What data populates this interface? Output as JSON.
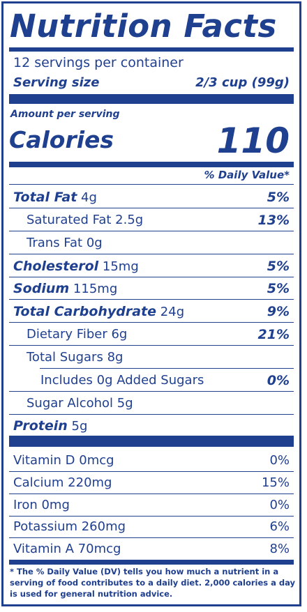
{
  "label": {
    "title": "Nutrition Facts",
    "servings": "12 servings per container",
    "serving_size_label": "Serving size",
    "serving_size_value": "2/3 cup (99g)",
    "amount_per_serving": "Amount per serving",
    "calories_label": "Calories",
    "calories_value": "110",
    "daily_value_header": "% Daily Value*",
    "nutrients": [
      {
        "name": "Total Fat",
        "amount": "4g",
        "dv": "5%"
      },
      {
        "name": "Saturated Fat",
        "amount": "2.5g",
        "dv": "13%"
      },
      {
        "name": "Trans Fat",
        "amount": "0g",
        "dv": ""
      },
      {
        "name": "Cholesterol",
        "amount": "15mg",
        "dv": "5%"
      },
      {
        "name": "Sodium",
        "amount": "115mg",
        "dv": "5%"
      },
      {
        "name": "Total Carbohydrate",
        "amount": "24g",
        "dv": "9%"
      },
      {
        "name": "Dietary Fiber",
        "amount": "6g",
        "dv": "21%"
      },
      {
        "name": "Total Sugars",
        "amount": "8g",
        "dv": ""
      },
      {
        "name": "Includes 0g Added Sugars",
        "amount": "",
        "dv": "0%"
      },
      {
        "name": "Sugar Alcohol",
        "amount": "5g",
        "dv": ""
      },
      {
        "name": "Protein",
        "amount": "5g",
        "dv": ""
      }
    ],
    "vitamins": [
      {
        "name": "Vitamin D 0mcg",
        "dv": "0%"
      },
      {
        "name": "Calcium 220mg",
        "dv": "15%"
      },
      {
        "name": "Iron 0mg",
        "dv": "0%"
      },
      {
        "name": "Potassium 260mg",
        "dv": "6%"
      },
      {
        "name": "Vitamin A 70mcg",
        "dv": "8%"
      }
    ],
    "footnote": "* The % Daily Value (DV) tells you how much a nutrient in a serving of food contributes to a daily diet. 2,000 calories a day is used for general nutrition advice.",
    "color": "#1f3f8f"
  }
}
